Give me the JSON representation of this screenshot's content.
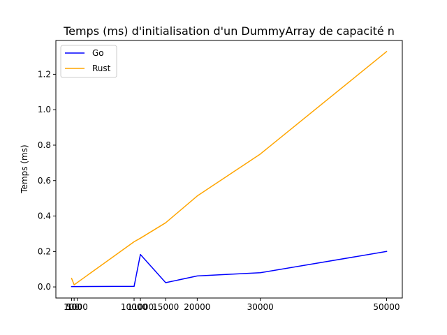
{
  "chart_data": {
    "type": "line",
    "title": "Temps (ms) d'initialisation d'un DummyArray de capacité n",
    "xlabel": "",
    "ylabel": "Temps (ms)",
    "x_ticks": [
      100,
      500,
      1000,
      10000,
      11000,
      15000,
      20000,
      30000,
      50000
    ],
    "y_ticks": [
      0.0,
      0.2,
      0.4,
      0.6,
      0.8,
      1.0,
      1.2
    ],
    "y_tick_labels": [
      "0.0",
      "0.2",
      "0.4",
      "0.6",
      "0.8",
      "1.0",
      "1.2"
    ],
    "xlim": [
      -2395,
      52495
    ],
    "ylim": [
      -0.0626,
      1.3906
    ],
    "grid": false,
    "legend_position": "top-left",
    "series": [
      {
        "name": "Go",
        "color": "#0000ff",
        "x": [
          100,
          500,
          1000,
          10000,
          11000,
          15000,
          20000,
          30000,
          50000
        ],
        "y": [
          0.002,
          0.002,
          0.002,
          0.003,
          0.183,
          0.024,
          0.062,
          0.08,
          0.2
        ]
      },
      {
        "name": "Rust",
        "color": "#ffa500",
        "x": [
          100,
          500,
          1000,
          10000,
          11000,
          15000,
          20000,
          30000,
          50000
        ],
        "y": [
          0.048,
          0.012,
          0.025,
          0.255,
          0.275,
          0.362,
          0.513,
          0.75,
          1.328
        ]
      }
    ]
  }
}
